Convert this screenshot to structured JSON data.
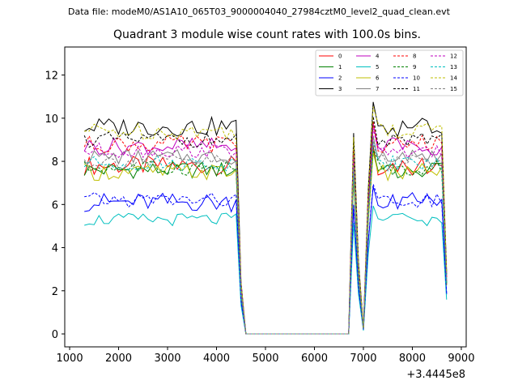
{
  "header": {
    "datafile": "Data file: modeM0/AS1A10_065T03_9000004040_27984cztM0_level2_quad_clean.evt"
  },
  "chart_data": {
    "type": "line",
    "title": "Quadrant 3 module wise count rates with 100.0s bins.",
    "xlabel": "",
    "ylabel": "",
    "x_offset_label": "+3.4445e8",
    "xlim": [
      900,
      9100
    ],
    "ylim": [
      -0.6,
      13.3
    ],
    "xticks": [
      1000,
      2000,
      3000,
      4000,
      5000,
      6000,
      7000,
      8000,
      9000
    ],
    "yticks": [
      0,
      2,
      4,
      6,
      8,
      10,
      12
    ],
    "legend_position": "top-right",
    "segment_a": {
      "x_start": 1300,
      "x_end": 4400,
      "step": 100
    },
    "transition": [
      {
        "x": 4500,
        "frac": 0.25
      },
      {
        "x": 4600,
        "frac": 0.0
      },
      {
        "x": 6700,
        "frac": 0.0
      }
    ],
    "spikes": [
      {
        "x": 6800,
        "frac": 0.97
      },
      {
        "x": 6900,
        "frac": 0.35
      },
      {
        "x": 7000,
        "frac": 0.03
      },
      {
        "x": 7100,
        "frac": 0.7
      },
      {
        "x": 7200,
        "frac": 1.12
      }
    ],
    "segment_b": {
      "x_start": 7300,
      "x_end": 8600,
      "step": 100
    },
    "end_point": {
      "x": 8700,
      "frac": 0.3
    },
    "series": [
      {
        "name": "0",
        "color": "#ff0000",
        "dash": "solid",
        "level": 7.8,
        "amp": 0.45
      },
      {
        "name": "1",
        "color": "#008000",
        "dash": "solid",
        "level": 7.6,
        "amp": 0.4
      },
      {
        "name": "2",
        "color": "#0000ff",
        "dash": "solid",
        "level": 6.1,
        "amp": 0.45
      },
      {
        "name": "3",
        "color": "#000000",
        "dash": "solid",
        "level": 9.6,
        "amp": 0.45
      },
      {
        "name": "4",
        "color": "#bf00bf",
        "dash": "solid",
        "level": 8.7,
        "amp": 0.4
      },
      {
        "name": "5",
        "color": "#00bfbf",
        "dash": "solid",
        "level": 5.3,
        "amp": 0.3
      },
      {
        "name": "6",
        "color": "#bfbf00",
        "dash": "solid",
        "level": 7.5,
        "amp": 0.4
      },
      {
        "name": "7",
        "color": "#808080",
        "dash": "solid",
        "level": 8.2,
        "amp": 0.35
      },
      {
        "name": "8",
        "color": "#ff0000",
        "dash": "dashed",
        "level": 8.8,
        "amp": 0.4
      },
      {
        "name": "9",
        "color": "#008000",
        "dash": "dashed",
        "level": 7.7,
        "amp": 0.35
      },
      {
        "name": "10",
        "color": "#0000ff",
        "dash": "dashed",
        "level": 6.2,
        "amp": 0.35
      },
      {
        "name": "11",
        "color": "#000000",
        "dash": "dashed",
        "level": 9.0,
        "amp": 0.35
      },
      {
        "name": "12",
        "color": "#bf00bf",
        "dash": "dashed",
        "level": 8.5,
        "amp": 0.35
      },
      {
        "name": "13",
        "color": "#00bfbf",
        "dash": "dashed",
        "level": 7.9,
        "amp": 0.35
      },
      {
        "name": "14",
        "color": "#bfbf00",
        "dash": "dashed",
        "level": 9.4,
        "amp": 0.4
      },
      {
        "name": "15",
        "color": "#808080",
        "dash": "dashed",
        "level": 8.0,
        "amp": 0.35
      }
    ]
  }
}
